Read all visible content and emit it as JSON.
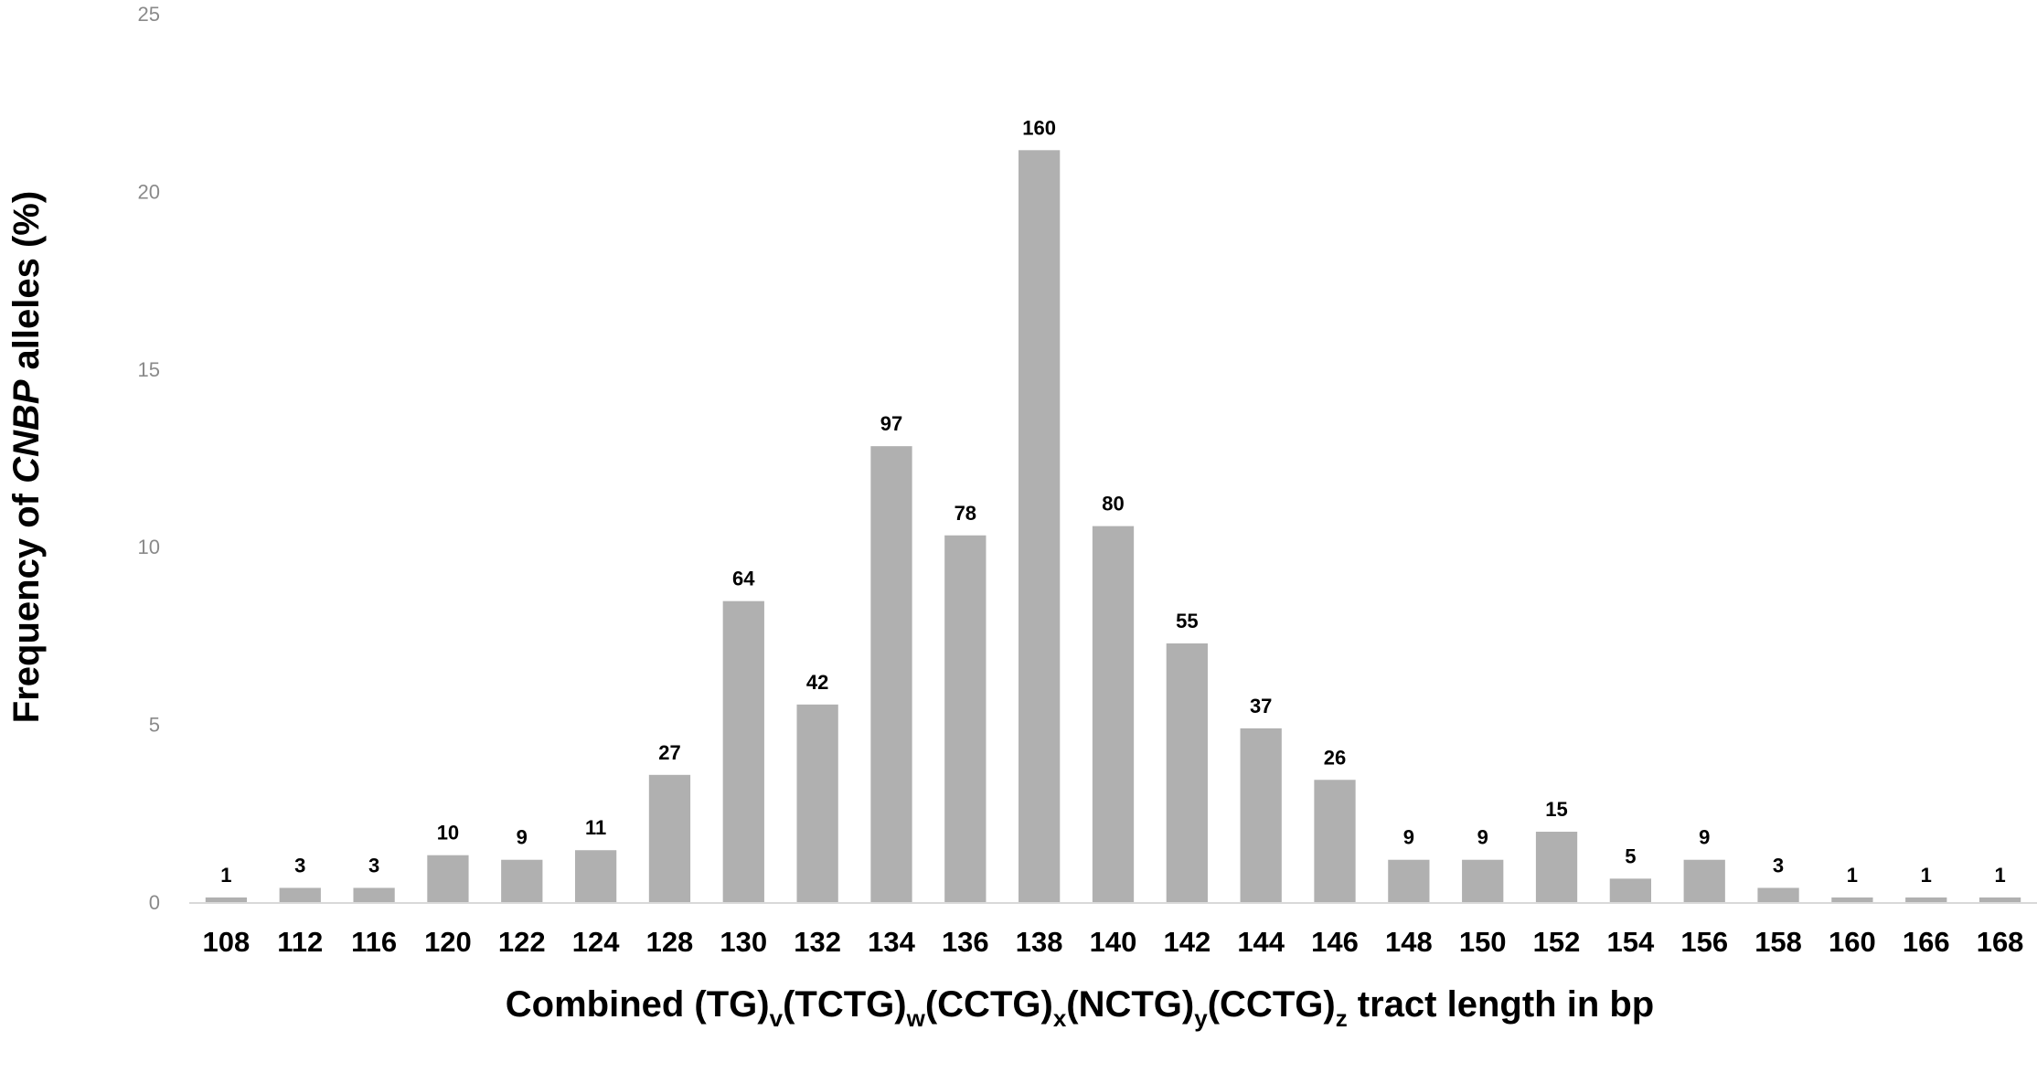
{
  "chart_data": {
    "type": "bar",
    "categories": [
      "108",
      "112",
      "116",
      "120",
      "122",
      "124",
      "128",
      "130",
      "132",
      "134",
      "136",
      "138",
      "140",
      "142",
      "144",
      "146",
      "148",
      "150",
      "152",
      "154",
      "156",
      "158",
      "160",
      "166",
      "168"
    ],
    "values": [
      0.13,
      0.4,
      0.4,
      1.32,
      1.19,
      1.46,
      3.58,
      8.47,
      5.56,
      12.83,
      10.32,
      21.16,
      10.58,
      7.28,
      4.89,
      3.44,
      1.19,
      1.19,
      1.98,
      0.66,
      1.19,
      0.4,
      0.13,
      0.13,
      0.13
    ],
    "data_labels": [
      "1",
      "3",
      "3",
      "10",
      "9",
      "11",
      "27",
      "64",
      "42",
      "97",
      "78",
      "160",
      "80",
      "55",
      "37",
      "26",
      "9",
      "9",
      "15",
      "5",
      "9",
      "3",
      "1",
      "1",
      "1"
    ],
    "ylim": [
      0,
      25
    ],
    "yticks": [
      0,
      5,
      10,
      15,
      20,
      25
    ],
    "ylabel": {
      "prefix": "Frequency of ",
      "italic": "CNBP",
      "suffix": " alleles (%)"
    },
    "xlabel": {
      "parts": [
        {
          "text": "Combined (TG)"
        },
        {
          "text": "v",
          "sub": true
        },
        {
          "text": "(TCTG)"
        },
        {
          "text": "w",
          "sub": true
        },
        {
          "text": "(CCTG)"
        },
        {
          "text": "x",
          "sub": true
        },
        {
          "text": "(NCTG)"
        },
        {
          "text": "y",
          "sub": true
        },
        {
          "text": "(CCTG)"
        },
        {
          "text": "z",
          "sub": true
        },
        {
          "text": " tract length in bp"
        }
      ]
    },
    "grid": false,
    "colors": {
      "bar": "#b0b0b0",
      "axis": "#d9d9d9",
      "tick_label": "#8a8a8a",
      "text": "#000000"
    }
  }
}
